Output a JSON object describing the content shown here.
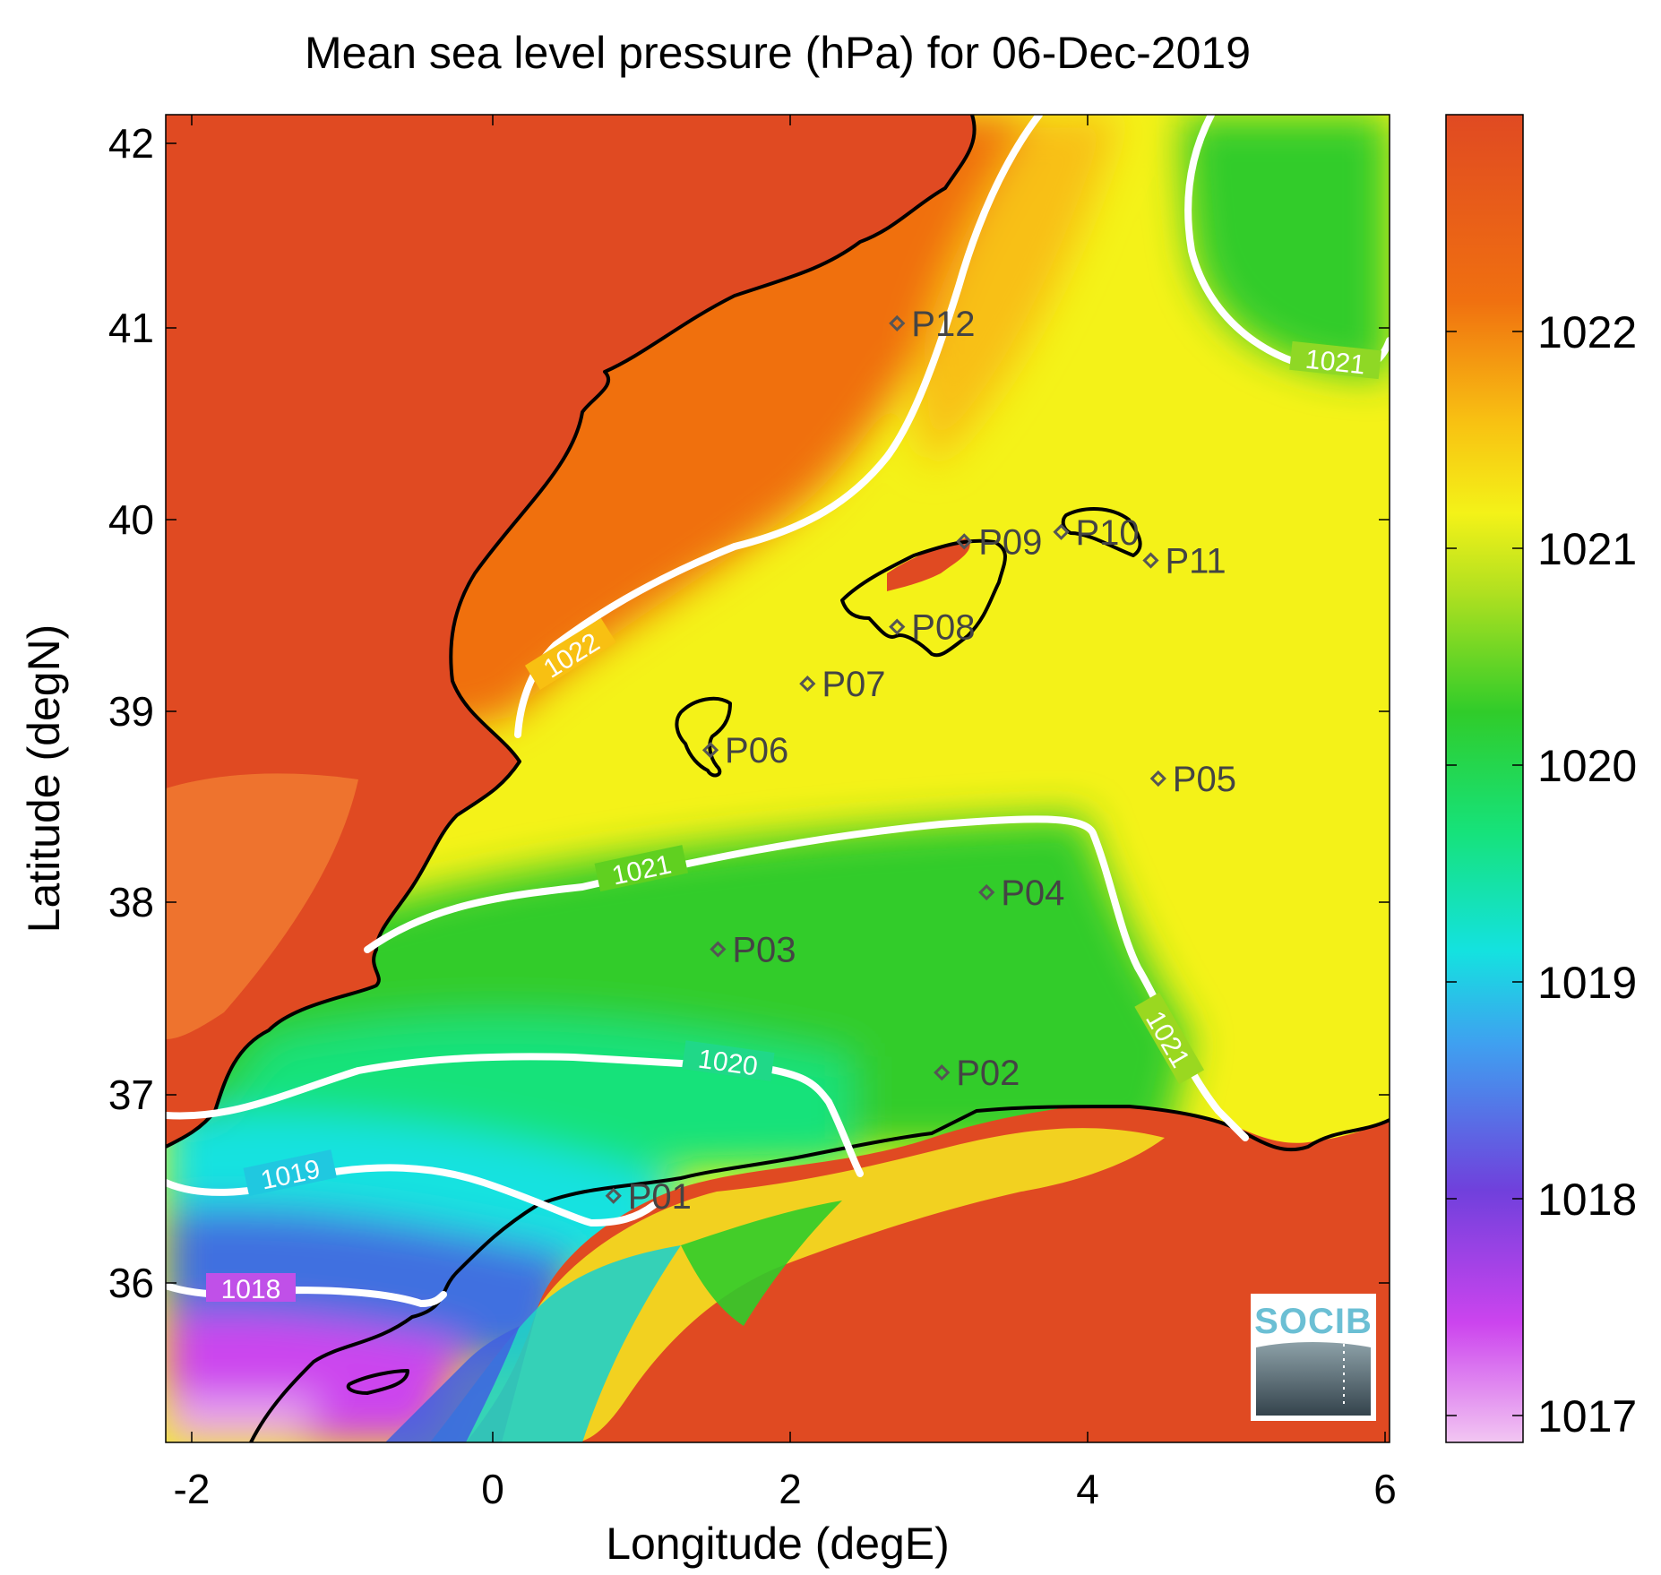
{
  "title": "Mean sea level pressure (hPa) for 06-Dec-2019",
  "xlabel": "Longitude (degE)",
  "ylabel": "Latitude (degN)",
  "x_ticks": [
    "-2",
    "0",
    "2",
    "4",
    "6"
  ],
  "y_ticks": [
    "36",
    "37",
    "38",
    "39",
    "40",
    "41",
    "42"
  ],
  "colorbar": {
    "ticks": [
      "1017",
      "1018",
      "1019",
      "1020",
      "1021",
      "1022"
    ],
    "range": [
      1016.9,
      1023.1
    ],
    "colormap": [
      "#f2c6f2",
      "#cc44ee",
      "#7040dc",
      "#3fa0f0",
      "#14e2e0",
      "#16e27a",
      "#30cc2a",
      "#b0e020",
      "#f4f218",
      "#f8c012",
      "#f07010",
      "#e04a22"
    ]
  },
  "logo": {
    "text": "SOCIB"
  },
  "colors": {
    "land_high": "#e04a22",
    "sea_high": "#f07010",
    "sea_mid": "#f4f218",
    "sea_low_green": "#30cc2a",
    "sea_cyan": "#14e2e0",
    "sea_blue": "#3f70e0",
    "sea_violet": "#cc44ee",
    "contour": "#ffffff",
    "coast": "#000000",
    "points": "#555555"
  },
  "map_data": {
    "lon_range": [
      -2.2,
      6.0
    ],
    "lat_range": [
      35.2,
      42.2
    ],
    "contours": [
      {
        "level": "1022",
        "label": "1022"
      },
      {
        "level": "1021",
        "label": "1021"
      },
      {
        "level": "1020",
        "label": "1020"
      },
      {
        "level": "1019",
        "label": "1019"
      },
      {
        "level": "1018",
        "label": "1018"
      }
    ],
    "points": [
      {
        "name": "P01",
        "lon": 0.8,
        "lat": 36.5
      },
      {
        "name": "P02",
        "lon": 3.0,
        "lat": 37.15
      },
      {
        "name": "P03",
        "lon": 1.5,
        "lat": 37.8
      },
      {
        "name": "P04",
        "lon": 3.3,
        "lat": 38.1
      },
      {
        "name": "P05",
        "lon": 4.45,
        "lat": 38.7
      },
      {
        "name": "P06",
        "lon": 1.45,
        "lat": 38.85
      },
      {
        "name": "P07",
        "lon": 2.1,
        "lat": 39.2
      },
      {
        "name": "P08",
        "lon": 2.7,
        "lat": 39.5
      },
      {
        "name": "P09",
        "lon": 3.15,
        "lat": 39.95
      },
      {
        "name": "P10",
        "lon": 3.8,
        "lat": 40.0
      },
      {
        "name": "P11",
        "lon": 4.4,
        "lat": 39.85
      },
      {
        "name": "P12",
        "lon": 2.7,
        "lat": 41.1
      }
    ]
  }
}
